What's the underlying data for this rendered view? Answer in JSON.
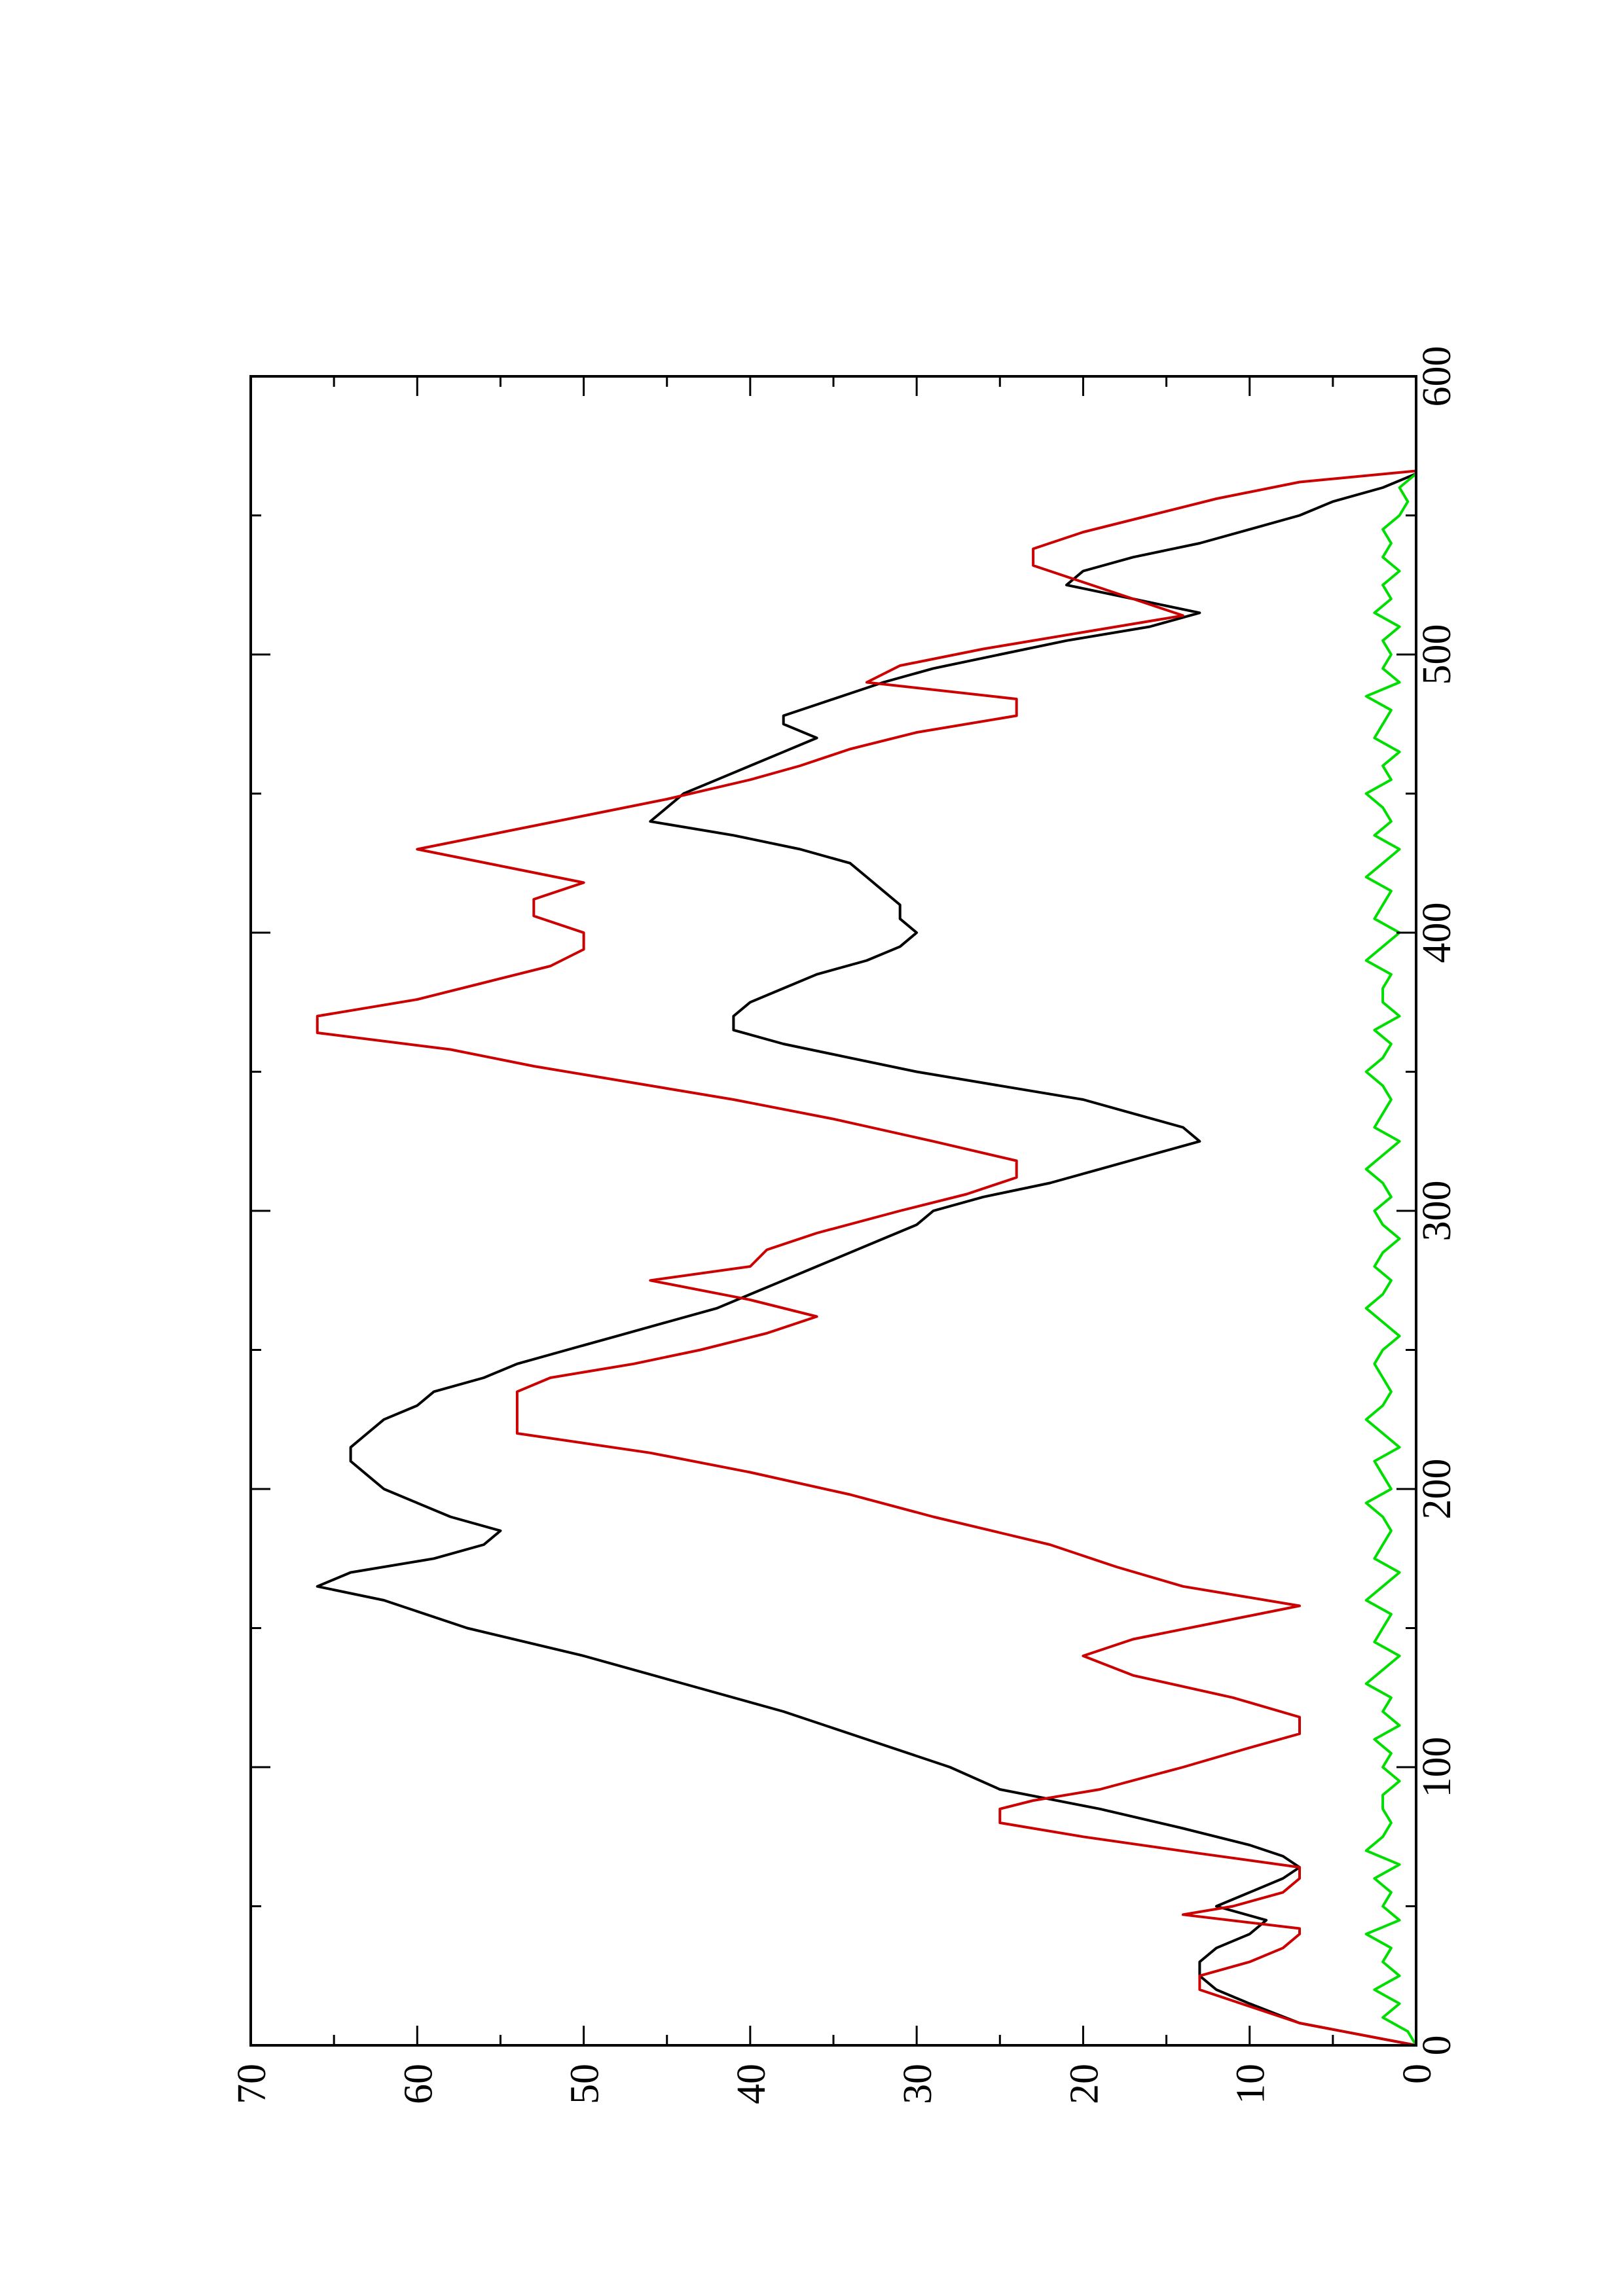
{
  "chart_data": {
    "type": "line",
    "title": "",
    "xlabel": "",
    "ylabel": "",
    "orientation": "rotated-90-ccw",
    "xlim": [
      0,
      600
    ],
    "ylim": [
      0,
      70
    ],
    "x_ticks": [
      0,
      100,
      200,
      300,
      400,
      500,
      600
    ],
    "x_tick_labels": [
      "0",
      "100",
      "200",
      "300",
      "400",
      "500",
      "600"
    ],
    "y_ticks": [
      0,
      10,
      20,
      30,
      40,
      50,
      60,
      70
    ],
    "y_tick_labels": [
      "0",
      "10",
      "20",
      "30",
      "40",
      "50",
      "60",
      "70"
    ],
    "grid": false,
    "legend": "none",
    "series": [
      {
        "color": "#000000",
        "x": [
          0,
          8,
          15,
          20,
          25,
          30,
          35,
          40,
          45,
          50,
          55,
          60,
          64,
          68,
          72,
          78,
          85,
          92,
          100,
          110,
          120,
          130,
          140,
          150,
          160,
          165,
          170,
          175,
          180,
          185,
          190,
          195,
          200,
          205,
          210,
          215,
          220,
          225,
          230,
          235,
          240,
          245,
          250,
          255,
          260,
          265,
          270,
          275,
          280,
          285,
          290,
          295,
          300,
          305,
          310,
          315,
          320,
          325,
          330,
          335,
          340,
          345,
          350,
          355,
          360,
          365,
          370,
          375,
          380,
          385,
          390,
          395,
          400,
          405,
          410,
          415,
          420,
          425,
          430,
          435,
          440,
          445,
          450,
          455,
          460,
          465,
          470,
          475,
          478,
          482,
          486,
          490,
          495,
          500,
          505,
          510,
          515,
          520,
          525,
          530,
          535,
          540,
          545,
          550,
          555,
          560,
          565
        ],
        "y": [
          0,
          7,
          10,
          12,
          13,
          13,
          12,
          10,
          9,
          12,
          10,
          8,
          7,
          8,
          10,
          14,
          19,
          25,
          28,
          33,
          38,
          44,
          50,
          57,
          62,
          66,
          64,
          59,
          56,
          55,
          58,
          60,
          62,
          63,
          64,
          64,
          63,
          62,
          60,
          59,
          56,
          54,
          51,
          48,
          45,
          42,
          40,
          38,
          36,
          34,
          32,
          30,
          29,
          26,
          22,
          19,
          16,
          13,
          14,
          17,
          20,
          25,
          30,
          34,
          38,
          41,
          41,
          40,
          38,
          36,
          33,
          31,
          30,
          31,
          31,
          32,
          33,
          34,
          37,
          41,
          46,
          45,
          44,
          42,
          40,
          38,
          36,
          38,
          38,
          36,
          34,
          32,
          29,
          25,
          21,
          16,
          13,
          17,
          21,
          20,
          17,
          13,
          10,
          7,
          5,
          2,
          0
        ]
      },
      {
        "color": "#cc0000",
        "x": [
          0,
          8,
          20,
          25,
          30,
          35,
          40,
          42,
          47,
          50,
          55,
          60,
          64,
          69,
          75,
          80,
          85,
          88,
          92,
          100,
          107,
          112,
          118,
          125,
          133,
          140,
          146,
          152,
          158,
          165,
          172,
          180,
          190,
          198,
          206,
          213,
          220,
          228,
          235,
          240,
          245,
          250,
          256,
          262,
          268,
          275,
          280,
          286,
          292,
          300,
          306,
          312,
          318,
          325,
          333,
          340,
          346,
          352,
          358,
          364,
          370,
          376,
          382,
          388,
          394,
          400,
          406,
          412,
          418,
          424,
          430,
          436,
          442,
          448,
          455,
          460,
          466,
          472,
          478,
          484,
          490,
          496,
          502,
          508,
          514,
          520,
          526,
          532,
          538,
          544,
          550,
          556,
          562,
          566
        ],
        "y": [
          0,
          7,
          13,
          13,
          10,
          8,
          7,
          7,
          14,
          11,
          8,
          7,
          7,
          13,
          20,
          25,
          25,
          23,
          19,
          14,
          10,
          7,
          7,
          11,
          17,
          20,
          17,
          12,
          7,
          14,
          18,
          22,
          29,
          34,
          40,
          46,
          54,
          54,
          54,
          52,
          47,
          43,
          39,
          36,
          40,
          46,
          40,
          39,
          36,
          31,
          27,
          24,
          24,
          29,
          35,
          41,
          47,
          53,
          58,
          66,
          66,
          60,
          56,
          52,
          50,
          50,
          53,
          53,
          50,
          55,
          60,
          55,
          50,
          45,
          40,
          37,
          34,
          30,
          24,
          24,
          33,
          31,
          26,
          20,
          14,
          17,
          20,
          23,
          23,
          20,
          16,
          12,
          7,
          0
        ]
      },
      {
        "color": "#00dd00",
        "x": [
          0,
          5,
          10,
          15,
          20,
          25,
          30,
          35,
          40,
          45,
          50,
          55,
          60,
          65,
          70,
          75,
          80,
          85,
          90,
          95,
          100,
          105,
          110,
          115,
          120,
          125,
          130,
          135,
          140,
          145,
          150,
          155,
          160,
          165,
          170,
          175,
          180,
          185,
          190,
          195,
          200,
          205,
          210,
          215,
          220,
          225,
          230,
          235,
          240,
          245,
          250,
          255,
          260,
          265,
          270,
          275,
          280,
          285,
          290,
          295,
          300,
          305,
          310,
          315,
          320,
          325,
          330,
          335,
          340,
          345,
          350,
          355,
          360,
          365,
          370,
          375,
          380,
          385,
          390,
          395,
          400,
          405,
          410,
          415,
          420,
          425,
          430,
          435,
          440,
          445,
          450,
          455,
          460,
          465,
          470,
          475,
          480,
          485,
          490,
          495,
          500,
          505,
          510,
          515,
          520,
          525,
          530,
          535,
          540,
          545,
          550,
          555,
          560,
          565
        ],
        "y": [
          0,
          0.5,
          2,
          1,
          2.5,
          1,
          2,
          1.5,
          3,
          1,
          2,
          1.5,
          2.5,
          1,
          3,
          2,
          1.5,
          2,
          2,
          1,
          2,
          1.5,
          2.5,
          1,
          2,
          1.5,
          3,
          2,
          1,
          2.5,
          2,
          1.5,
          3,
          2,
          1,
          2.5,
          2,
          1.5,
          2,
          3,
          1.5,
          2,
          2.5,
          1,
          2,
          3,
          2,
          1.5,
          2,
          2.5,
          2,
          1,
          2,
          3,
          2,
          1.5,
          2.5,
          2,
          1,
          2,
          2.5,
          1.5,
          2,
          3,
          2,
          1,
          2.5,
          2,
          1.5,
          2,
          3,
          2,
          1.5,
          2.5,
          1,
          2,
          2,
          1.5,
          3,
          2,
          1,
          2.5,
          2,
          1.5,
          3,
          2,
          1,
          2.5,
          1.5,
          2,
          3,
          1.5,
          2,
          1,
          2.5,
          2,
          1.5,
          3,
          1,
          2,
          1.5,
          2,
          1,
          2.5,
          1.5,
          2,
          1,
          2,
          1.5,
          2,
          1,
          0.5,
          1,
          0
        ]
      }
    ]
  }
}
